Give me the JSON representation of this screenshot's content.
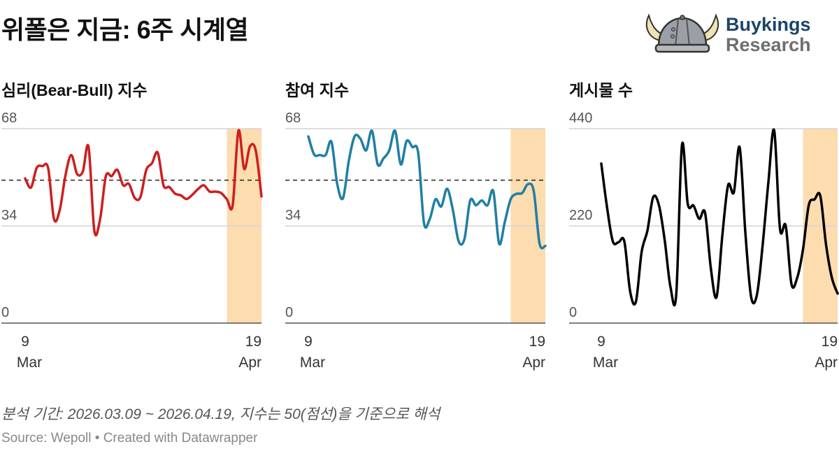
{
  "title": "위폴은 지금: 6주 시계열",
  "logo": {
    "line1": "Buykings",
    "line2": "Research"
  },
  "note": "분석 기간: 2026.03.09 ~ 2026.04.19, 지수는 50(점선)을 기준으로 해석",
  "source": "Source: Wepoll • Created with Datawrapper",
  "chart_data": [
    {
      "type": "line",
      "title": "심리(Bear-Bull) 지수",
      "color": "#cc1f1f",
      "ylim": [
        0,
        68
      ],
      "yticks": [
        "0",
        "34",
        "68"
      ],
      "reference_line": 50,
      "x_start": "2026-03-09",
      "x_end": "2026-04-19",
      "xticks": [
        {
          "day": "9",
          "month": "Mar"
        },
        {
          "day": "19",
          "month": "Apr"
        }
      ],
      "highlight_from_index": 35,
      "highlight_color": "#fddcb0",
      "values": [
        50.6,
        47.4,
        54.3,
        54.9,
        54.1,
        36.4,
        39.6,
        51.8,
        58.8,
        52.2,
        53.0,
        61.6,
        32.3,
        36.4,
        51.4,
        51.4,
        53.6,
        48.2,
        48.7,
        43.8,
        44.1,
        53.5,
        55.9,
        59.6,
        48.2,
        47.6,
        45.3,
        44.7,
        43.4,
        44.9,
        46.9,
        48.2,
        46.0,
        46.0,
        45.5,
        43.3,
        41.2,
        67.3,
        53.9,
        61.8,
        60.4,
        44.3
      ]
    },
    {
      "type": "line",
      "title": "참여 지수",
      "color": "#1f7fa3",
      "ylim": [
        0,
        68
      ],
      "yticks": [
        "0",
        "34",
        "68"
      ],
      "reference_line": 50,
      "x_start": "2026-03-09",
      "x_end": "2026-04-19",
      "xticks": [
        {
          "day": "9",
          "month": "Mar"
        },
        {
          "day": "19",
          "month": "Apr"
        }
      ],
      "highlight_from_index": 35,
      "highlight_color": "#fddcb0",
      "values": [
        65.3,
        59.0,
        58.8,
        58.8,
        63.4,
        48.6,
        43.7,
        56.7,
        65.3,
        64.5,
        60.4,
        67.3,
        55.5,
        57.6,
        60.4,
        67.3,
        55.5,
        63.7,
        61.6,
        59.6,
        35.1,
        36.4,
        43.3,
        40.8,
        47.0,
        39.6,
        28.6,
        29.4,
        42.9,
        41.2,
        42.9,
        41.2,
        46.1,
        27.8,
        35.5,
        43.3,
        45.2,
        45.5,
        48.6,
        46.1,
        27.8,
        27.0
      ]
    },
    {
      "type": "line",
      "title": "게시물 수",
      "color": "#000000",
      "ylim": [
        0,
        440
      ],
      "yticks": [
        "0",
        "220",
        "440"
      ],
      "reference_line": null,
      "x_start": "2026-03-09",
      "x_end": "2026-04-19",
      "xticks": [
        {
          "day": "9",
          "month": "Mar"
        },
        {
          "day": "19",
          "month": "Apr"
        }
      ],
      "highlight_from_index": 35,
      "highlight_color": "#fddcb0",
      "values": [
        361,
        262,
        185,
        183,
        185,
        72,
        48,
        161,
        209,
        285,
        267,
        188,
        82,
        64,
        403,
        270,
        266,
        236,
        250,
        125,
        59,
        198,
        312,
        296,
        398,
        204,
        59,
        64,
        177,
        320,
        436,
        214,
        220,
        88,
        103,
        167,
        267,
        280,
        288,
        177,
        103,
        67
      ]
    }
  ]
}
